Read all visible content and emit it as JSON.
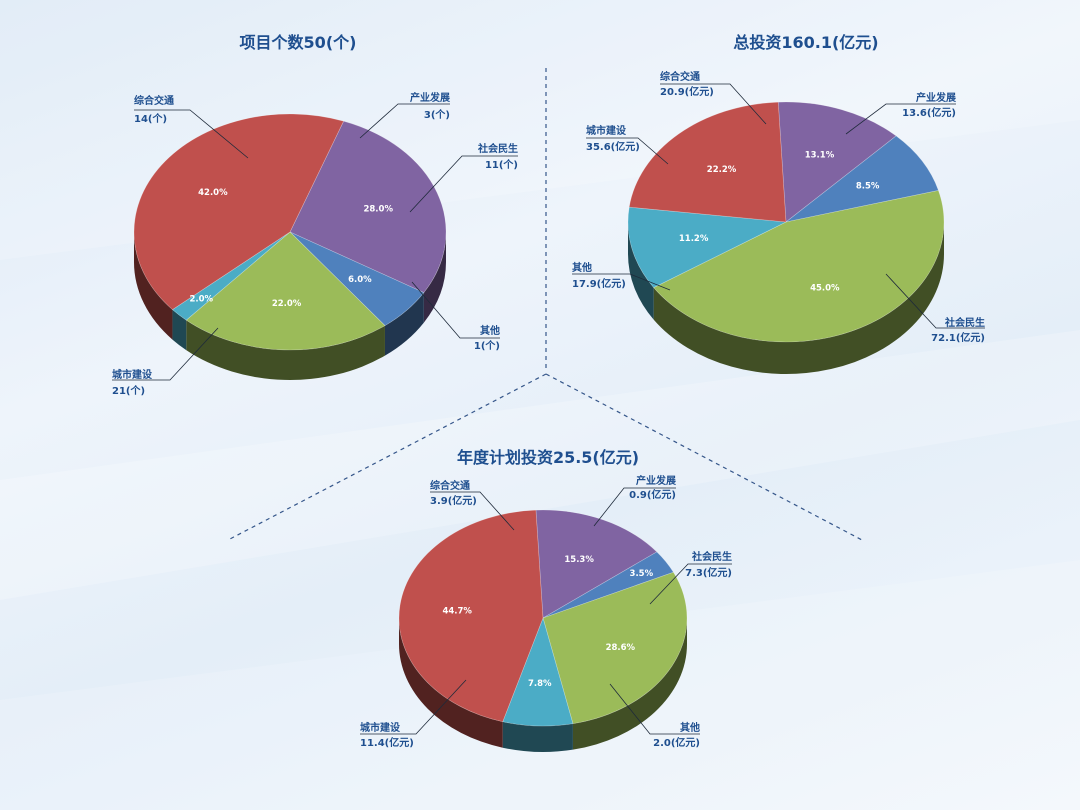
{
  "colors": {
    "城市建设": "#c0504d",
    "综合交通": "#8064a2",
    "产业发展": "#4f81bd",
    "社会民生": "#9bbb59",
    "其他": "#4bacc6"
  },
  "chart_data": [
    {
      "type": "pie",
      "title": "项目个数50(个)",
      "slices": [
        {
          "name": "综合交通",
          "value": 14,
          "value_label": "14(个)",
          "percent_label": "28.0%"
        },
        {
          "name": "产业发展",
          "value": 3,
          "value_label": "3(个)",
          "percent_label": "6.0%"
        },
        {
          "name": "社会民生",
          "value": 11,
          "value_label": "11(个)",
          "percent_label": "22.0%"
        },
        {
          "name": "其他",
          "value": 1,
          "value_label": "1(个)",
          "percent_label": "2.0%"
        },
        {
          "name": "城市建设",
          "value": 21,
          "value_label": "21(个)",
          "percent_label": "42.0%"
        }
      ]
    },
    {
      "type": "pie",
      "title": "总投资160.1(亿元)",
      "slices": [
        {
          "name": "综合交通",
          "value": 20.9,
          "value_label": "20.9(亿元)",
          "percent_label": "13.1%"
        },
        {
          "name": "产业发展",
          "value": 13.6,
          "value_label": "13.6(亿元)",
          "percent_label": "8.5%"
        },
        {
          "name": "社会民生",
          "value": 72.1,
          "value_label": "72.1(亿元)",
          "percent_label": "45.0%"
        },
        {
          "name": "其他",
          "value": 17.9,
          "value_label": "17.9(亿元)",
          "percent_label": "11.2%"
        },
        {
          "name": "城市建设",
          "value": 35.6,
          "value_label": "35.6(亿元)",
          "percent_label": "22.2%"
        }
      ]
    },
    {
      "type": "pie",
      "title": "年度计划投资25.5(亿元)",
      "slices": [
        {
          "name": "综合交通",
          "value": 3.9,
          "value_label": "3.9(亿元)",
          "percent_label": "15.3%"
        },
        {
          "name": "产业发展",
          "value": 0.9,
          "value_label": "0.9(亿元)",
          "percent_label": "3.5%"
        },
        {
          "name": "社会民生",
          "value": 7.3,
          "value_label": "7.3(亿元)",
          "percent_label": "28.6%"
        },
        {
          "name": "其他",
          "value": 2.0,
          "value_label": "2.0(亿元)",
          "percent_label": "7.8%"
        },
        {
          "name": "城市建设",
          "value": 11.4,
          "value_label": "11.4(亿元)",
          "percent_label": "44.7%"
        }
      ]
    }
  ]
}
